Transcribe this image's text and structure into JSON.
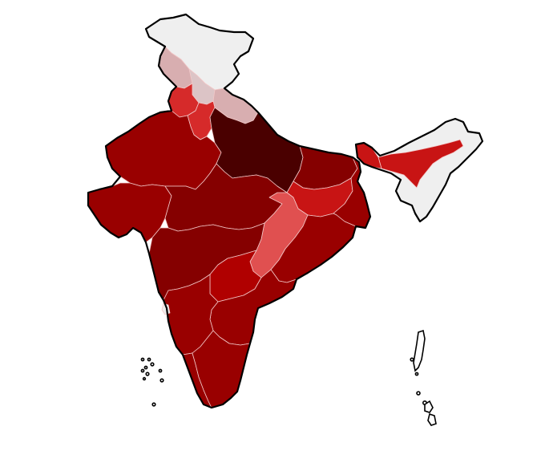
{
  "map": {
    "country": "India",
    "legend": null,
    "palette": {
      "very_light": "#efefef",
      "light_pink": "#dcc4c6",
      "pink": "#d8aeb0",
      "red": "#d62a2a",
      "bright_red": "#c81414",
      "mid_red": "#b00000",
      "dark_red": "#990000",
      "deep_red": "#850000",
      "darkest_red": "#4a0000",
      "light_red": "#e05050"
    },
    "regions": [
      {
        "id": "jammu-kashmir",
        "shade": "very_light"
      },
      {
        "id": "himachal-pradesh",
        "shade": "pink"
      },
      {
        "id": "ladakh-strip",
        "shade": "light_pink"
      },
      {
        "id": "uttarakhand",
        "shade": "pink"
      },
      {
        "id": "punjab",
        "shade": "red"
      },
      {
        "id": "haryana",
        "shade": "red"
      },
      {
        "id": "rajasthan",
        "shade": "dark_red"
      },
      {
        "id": "gujarat",
        "shade": "dark_red"
      },
      {
        "id": "uttar-pradesh",
        "shade": "darkest_red"
      },
      {
        "id": "bihar",
        "shade": "deep_red"
      },
      {
        "id": "madhya-pradesh",
        "shade": "deep_red"
      },
      {
        "id": "jharkhand",
        "shade": "bright_red"
      },
      {
        "id": "west-bengal",
        "shade": "dark_red"
      },
      {
        "id": "chhattisgarh",
        "shade": "light_red"
      },
      {
        "id": "odisha",
        "shade": "dark_red"
      },
      {
        "id": "maharashtra",
        "shade": "deep_red"
      },
      {
        "id": "telangana",
        "shade": "mid_red"
      },
      {
        "id": "andhra-pradesh",
        "shade": "dark_red"
      },
      {
        "id": "karnataka",
        "shade": "dark_red"
      },
      {
        "id": "goa",
        "shade": "very_light"
      },
      {
        "id": "kerala",
        "shade": "dark_red"
      },
      {
        "id": "tamil-nadu",
        "shade": "dark_red"
      },
      {
        "id": "northeast",
        "shade": "very_light"
      },
      {
        "id": "assam",
        "shade": "bright_red"
      },
      {
        "id": "sikkim-corridor",
        "shade": "bright_red"
      }
    ]
  }
}
